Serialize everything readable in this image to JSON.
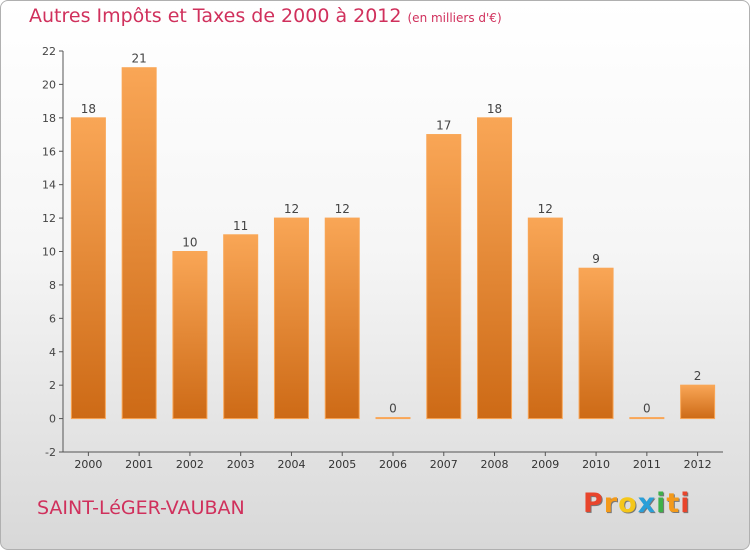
{
  "header": {
    "title": "Autres Impôts et Taxes de 2000 à 2012",
    "unit": "(en milliers d'€)"
  },
  "footer": {
    "commune": "SAINT-LéGER-VAUBAN",
    "logo": "Proxiti"
  },
  "colors": {
    "title": "#d0305c",
    "bar_light": "#f9a656",
    "bar_dark": "#cd6a16",
    "logo_letters": [
      "#e8452c",
      "#f39a1a",
      "#f5c71a",
      "#2a9fd8",
      "#3eb049",
      "#f39a1a",
      "#e8452c"
    ]
  },
  "chart_data": {
    "type": "bar",
    "categories": [
      "2000",
      "2001",
      "2002",
      "2003",
      "2004",
      "2005",
      "2006",
      "2007",
      "2008",
      "2009",
      "2010",
      "2011",
      "2012"
    ],
    "values": [
      18,
      21,
      10,
      11,
      12,
      12,
      0,
      17,
      18,
      12,
      9,
      0,
      2
    ],
    "data_labels": [
      "18",
      "21",
      "10",
      "11",
      "12",
      "12",
      "0",
      "17",
      "18",
      "12",
      "9",
      "0",
      "2"
    ],
    "yticks": [
      -2,
      0,
      2,
      4,
      6,
      8,
      10,
      12,
      14,
      16,
      18,
      20,
      22
    ],
    "ylim": [
      -2,
      22
    ],
    "grid": false
  }
}
